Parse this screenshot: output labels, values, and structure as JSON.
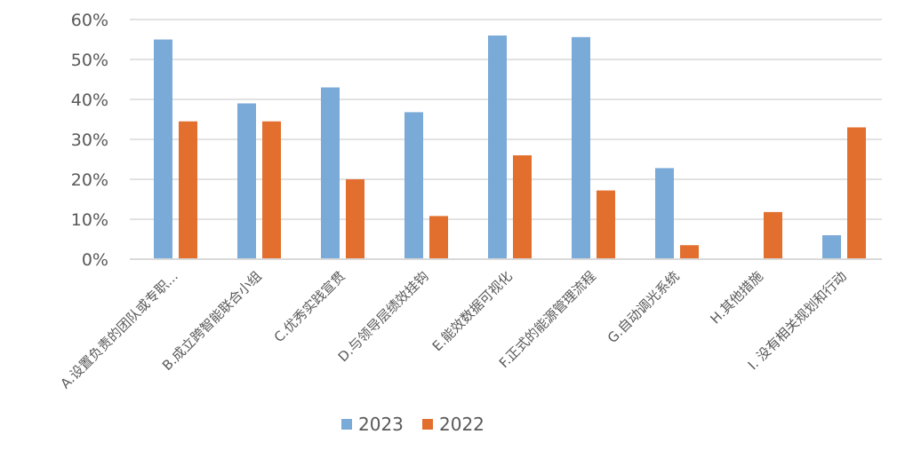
{
  "chart_data": {
    "type": "bar",
    "title": "",
    "xlabel": "",
    "ylabel": "",
    "ylim": [
      0,
      60
    ],
    "y_ticks": [
      "0%",
      "10%",
      "20%",
      "30%",
      "40%",
      "50%",
      "60%"
    ],
    "y_tick_values": [
      0,
      10,
      20,
      30,
      40,
      50,
      60
    ],
    "y_unit": "%",
    "grid": true,
    "legend_position": "bottom",
    "categories": [
      "A.设置负责的团队或专职...",
      "B.成立跨智能联合小组",
      "C.优秀实践宣贯",
      "D.与领导层绩效挂钩",
      "E.能效数据可视化",
      "F.正式的能源管理流程",
      "G.自动调光系统",
      "H.其他措施",
      "I. 没有相关规划和行动"
    ],
    "series": [
      {
        "name": "2023",
        "color": "#7aaad8",
        "values": [
          55,
          39,
          43,
          36.8,
          56,
          55.6,
          22.8,
          0,
          6
        ]
      },
      {
        "name": "2022",
        "color": "#e36f2f",
        "values": [
          34.5,
          34.5,
          20,
          10.8,
          26,
          17.2,
          3.5,
          11.8,
          33
        ]
      }
    ]
  },
  "colors": {
    "grid": "#d9d9d9",
    "axis_text": "#595959",
    "baseline": "#d9d9d9"
  }
}
